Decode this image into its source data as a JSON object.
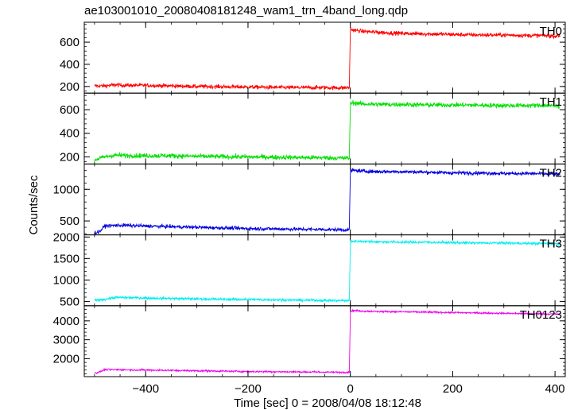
{
  "chart_data": {
    "type": "line",
    "title": "ae103001010_20080408181248_wam1_trn_4band_long.qdp",
    "xlabel": "Time [sec] 0 = 2008/04/08 18:12:48",
    "ylabel": "Counts/sec",
    "xlim": [
      -520,
      420
    ],
    "xticks": [
      -400,
      -200,
      0,
      200,
      400
    ],
    "step_time": 0,
    "panels": [
      {
        "name": "TH0",
        "color": "#ff0000",
        "ylim": [
          140,
          780
        ],
        "yticks": [
          200,
          400,
          600
        ],
        "x": [
          -500,
          -480,
          -460,
          -440,
          -400,
          -350,
          -300,
          -250,
          -200,
          -150,
          -100,
          -50,
          -20,
          -2,
          0,
          5,
          20,
          50,
          100,
          150,
          200,
          250,
          300,
          350,
          380,
          400,
          410
        ],
        "y": [
          205,
          205,
          215,
          210,
          210,
          205,
          200,
          198,
          195,
          192,
          190,
          190,
          188,
          190,
          720,
          710,
          700,
          690,
          680,
          675,
          670,
          665,
          665,
          660,
          660,
          655,
          660
        ],
        "noise": 18
      },
      {
        "name": "TH1",
        "color": "#00e000",
        "ylim": [
          140,
          740
        ],
        "yticks": [
          200,
          400,
          600
        ],
        "x": [
          -500,
          -480,
          -460,
          -440,
          -400,
          -350,
          -300,
          -250,
          -200,
          -150,
          -100,
          -50,
          -20,
          -2,
          0,
          5,
          20,
          50,
          100,
          150,
          200,
          250,
          300,
          350,
          380,
          400,
          410
        ],
        "y": [
          175,
          200,
          215,
          212,
          210,
          210,
          205,
          202,
          200,
          198,
          195,
          193,
          190,
          190,
          650,
          660,
          650,
          645,
          645,
          640,
          640,
          638,
          635,
          635,
          635,
          630,
          630
        ],
        "noise": 20
      },
      {
        "name": "TH2",
        "color": "#0000e0",
        "ylim": [
          280,
          1400
        ],
        "yticks": [
          500,
          1000
        ],
        "x": [
          -500,
          -490,
          -480,
          -460,
          -440,
          -400,
          -350,
          -300,
          -250,
          -200,
          -150,
          -100,
          -50,
          -20,
          -2,
          0,
          5,
          20,
          50,
          100,
          150,
          200,
          250,
          300,
          350,
          380,
          400,
          410
        ],
        "y": [
          310,
          330,
          420,
          430,
          430,
          420,
          410,
          400,
          390,
          380,
          375,
          370,
          365,
          360,
          360,
          1300,
          1300,
          1290,
          1280,
          1280,
          1270,
          1260,
          1260,
          1250,
          1250,
          1245,
          1240,
          1240
        ],
        "noise": 28
      },
      {
        "name": "TH3",
        "color": "#00eeee",
        "ylim": [
          400,
          2050
        ],
        "yticks": [
          500,
          1000,
          1500,
          2000
        ],
        "x": [
          -500,
          -480,
          -460,
          -440,
          -400,
          -350,
          -300,
          -250,
          -200,
          -150,
          -100,
          -50,
          -20,
          -2,
          0,
          5,
          20,
          50,
          100,
          150,
          200,
          250,
          300,
          350,
          380,
          400,
          410
        ],
        "y": [
          520,
          550,
          590,
          590,
          580,
          570,
          560,
          550,
          545,
          540,
          530,
          525,
          520,
          520,
          1900,
          1900,
          1900,
          1890,
          1880,
          1880,
          1870,
          1860,
          1860,
          1850,
          1850,
          1845,
          1840
        ],
        "noise": 30
      },
      {
        "name": "TH0123",
        "color": "#ee00ee",
        "ylim": [
          1050,
          4800
        ],
        "yticks": [
          2000,
          3000,
          4000
        ],
        "x": [
          -500,
          -490,
          -480,
          -460,
          -440,
          -400,
          -350,
          -300,
          -250,
          -200,
          -150,
          -100,
          -50,
          -20,
          -2,
          0,
          5,
          20,
          50,
          100,
          150,
          200,
          250,
          300,
          350,
          380,
          400,
          410
        ],
        "y": [
          1230,
          1300,
          1420,
          1420,
          1410,
          1400,
          1380,
          1360,
          1340,
          1320,
          1310,
          1300,
          1290,
          1280,
          1280,
          4500,
          4550,
          4520,
          4500,
          4480,
          4460,
          4440,
          4420,
          4400,
          4380,
          4370,
          4360,
          4350
        ],
        "noise": 45
      }
    ]
  }
}
